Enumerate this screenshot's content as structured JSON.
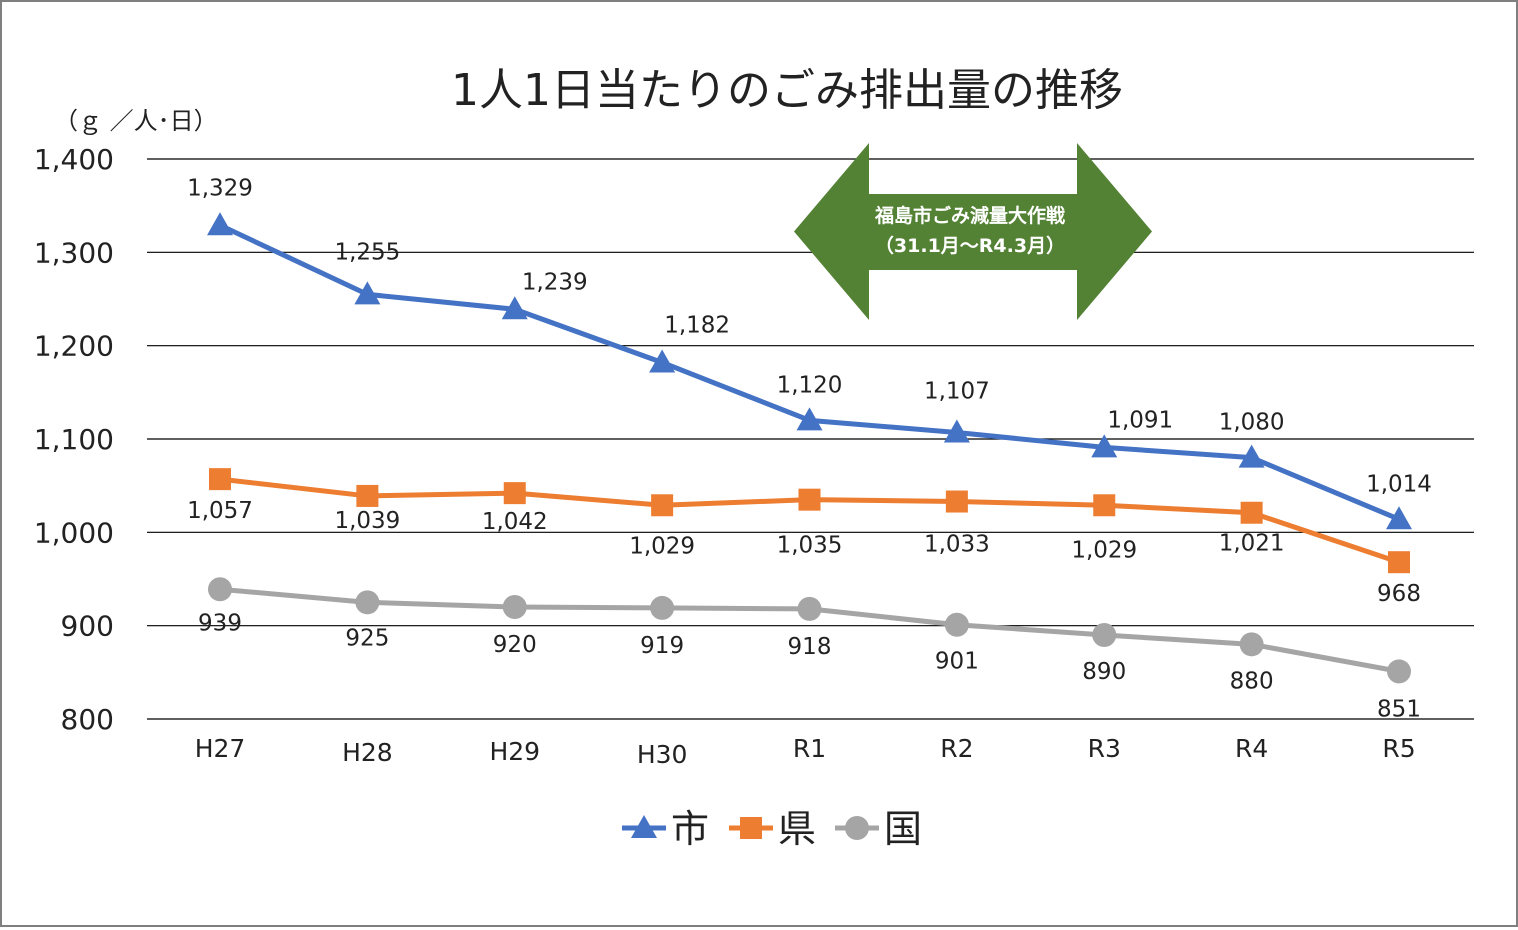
{
  "chart_data": {
    "type": "line",
    "title": "1人1日当たりのごみ排出量の推移",
    "ylabel": "（ｇ ／人･日）",
    "xlabel": "",
    "categories": [
      "H27",
      "H28",
      "H29",
      "H30",
      "R1",
      "R2",
      "R3",
      "R4",
      "R5"
    ],
    "ylim": [
      800,
      1400
    ],
    "yticks": [
      800,
      900,
      1000,
      1100,
      1200,
      1300,
      1400
    ],
    "ytick_labels": [
      "800",
      "900",
      "1,000",
      "1,100",
      "1,200",
      "1,300",
      "1,400"
    ],
    "grid": true,
    "legend_position": "bottom",
    "series": [
      {
        "name": "市",
        "color": "#4472C4",
        "marker": "triangle",
        "values": [
          1329,
          1255,
          1239,
          1182,
          1120,
          1107,
          1091,
          1080,
          1014
        ],
        "labels": [
          "1,329",
          "1,255",
          "1,239",
          "1,182",
          "1,120",
          "1,107",
          "1,091",
          "1,080",
          "1,014"
        ]
      },
      {
        "name": "県",
        "color": "#ED7D31",
        "marker": "square",
        "values": [
          1057,
          1039,
          1042,
          1029,
          1035,
          1033,
          1029,
          1021,
          968
        ],
        "labels": [
          "1,057",
          "1,039",
          "1,042",
          "1,029",
          "1,035",
          "1,033",
          "1,029",
          "1,021",
          "968"
        ]
      },
      {
        "name": "国",
        "color": "#A5A5A5",
        "marker": "circle",
        "values": [
          939,
          925,
          920,
          919,
          918,
          901,
          890,
          880,
          851
        ],
        "labels": [
          "939",
          "925",
          "920",
          "919",
          "918",
          "901",
          "890",
          "880",
          "851"
        ]
      }
    ],
    "annotation": {
      "line1": "福島市ごみ減量大作戦",
      "line2": "（31.1月～R4.3月）",
      "color": "#548235"
    }
  }
}
